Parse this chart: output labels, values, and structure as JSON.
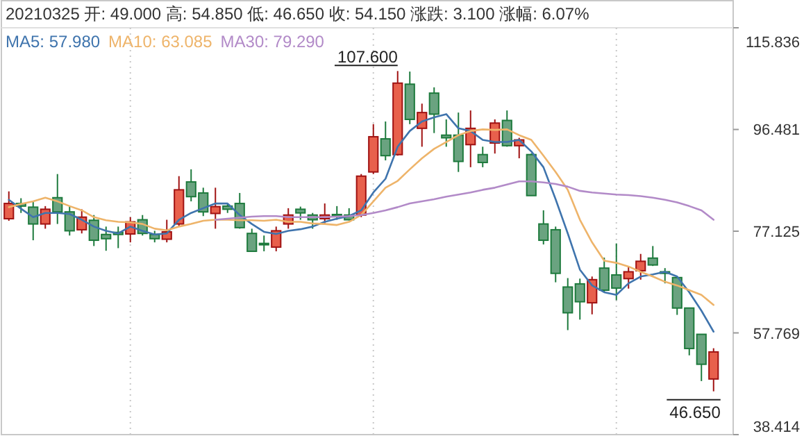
{
  "chart_data": {
    "type": "candlestick",
    "categories": [
      null,
      null,
      null,
      null,
      null,
      null,
      null,
      null,
      null,
      null,
      null,
      null,
      null,
      null,
      null,
      null,
      null,
      null,
      null,
      null,
      null,
      null,
      null,
      null,
      null,
      null,
      null,
      null,
      null,
      null,
      null,
      null,
      null,
      null,
      null,
      null,
      null,
      null,
      null,
      null,
      null,
      null,
      null,
      null,
      null,
      null,
      null,
      null,
      null,
      null,
      null,
      null,
      null,
      null,
      null,
      null,
      null,
      null,
      null
    ],
    "ohlc": [
      [
        79.5,
        84.7,
        79.1,
        82.4
      ],
      [
        82.4,
        83.4,
        80.6,
        81.9
      ],
      [
        81.7,
        82.8,
        75.4,
        78.5
      ],
      [
        78.5,
        81.9,
        77.6,
        81.3
      ],
      [
        83.5,
        88.0,
        78.5,
        80.8
      ],
      [
        80.8,
        81.9,
        76.3,
        77.2
      ],
      [
        77.4,
        81.3,
        76.7,
        79.8
      ],
      [
        79.2,
        80.2,
        74.3,
        75.4
      ],
      [
        76.5,
        78.0,
        73.4,
        75.7
      ],
      [
        76.9,
        78.0,
        73.9,
        76.5
      ],
      [
        76.6,
        79.8,
        75.0,
        78.9
      ],
      [
        79.3,
        80.2,
        76.3,
        76.7
      ],
      [
        76.5,
        77.2,
        75.0,
        75.7
      ],
      [
        75.6,
        79.3,
        75.0,
        77.0
      ],
      [
        78.5,
        87.6,
        78.0,
        85.0
      ],
      [
        86.5,
        88.9,
        82.8,
        83.7
      ],
      [
        84.4,
        85.4,
        80.0,
        80.8
      ],
      [
        80.5,
        85.4,
        77.6,
        81.8
      ],
      [
        81.9,
        82.4,
        80.6,
        81.3
      ],
      [
        82.4,
        84.4,
        77.6,
        77.8
      ],
      [
        76.7,
        77.6,
        73.3,
        73.3
      ],
      [
        74.8,
        76.3,
        73.3,
        74.6
      ],
      [
        74.1,
        78.0,
        73.3,
        77.2
      ],
      [
        78.5,
        81.5,
        77.6,
        80.2
      ],
      [
        81.3,
        81.8,
        79.3,
        80.6
      ],
      [
        80.2,
        80.6,
        77.6,
        79.3
      ],
      [
        79.5,
        82.4,
        78.5,
        80.2
      ],
      [
        80.3,
        81.9,
        79.3,
        80.0
      ],
      [
        80.2,
        81.5,
        79.2,
        79.3
      ],
      [
        80.2,
        88.0,
        79.8,
        87.6
      ],
      [
        88.4,
        97.5,
        88.0,
        95.1
      ],
      [
        94.7,
        98.0,
        90.6,
        91.5
      ],
      [
        91.7,
        107.6,
        91.5,
        105.3
      ],
      [
        105.1,
        107.5,
        97.5,
        98.4
      ],
      [
        96.7,
        101.4,
        93.2,
        99.7
      ],
      [
        103.4,
        104.5,
        95.8,
        99.4
      ],
      [
        95.4,
        98.4,
        93.2,
        94.9
      ],
      [
        95.4,
        99.7,
        88.4,
        90.4
      ],
      [
        93.6,
        100.1,
        89.3,
        96.7
      ],
      [
        91.7,
        93.2,
        89.3,
        90.2
      ],
      [
        93.9,
        98.4,
        91.9,
        97.7
      ],
      [
        98.2,
        100.1,
        93.2,
        93.4
      ],
      [
        93.4,
        94.9,
        91.0,
        94.5
      ],
      [
        91.7,
        91.9,
        83.9,
        83.9
      ],
      [
        78.5,
        81.1,
        74.6,
        75.4
      ],
      [
        77.4,
        78.0,
        67.4,
        69.1
      ],
      [
        66.5,
        68.2,
        58.3,
        61.6
      ],
      [
        67.1,
        68.1,
        60.3,
        63.7
      ],
      [
        63.5,
        68.5,
        61.3,
        67.9
      ],
      [
        70.1,
        72.1,
        65.5,
        65.9
      ],
      [
        68.8,
        74.8,
        64.0,
        66.3
      ],
      [
        68.1,
        70.4,
        66.2,
        69.4
      ],
      [
        69.6,
        72.8,
        67.9,
        71.4
      ],
      [
        72.0,
        74.3,
        70.5,
        70.7
      ],
      [
        69.4,
        70.1,
        67.2,
        69.1
      ],
      [
        68.3,
        68.3,
        61.2,
        62.5
      ],
      [
        62.5,
        62.5,
        53.5,
        54.8
      ],
      [
        57.5,
        57.5,
        48.6,
        51.8
      ],
      [
        49.0,
        54.85,
        46.65,
        54.15
      ]
    ],
    "series": [
      {
        "name": "MA5: 57.980",
        "type": "line",
        "color": "#3f74ad",
        "values": [
          83.1,
          81.4,
          79.8,
          80.6,
          80.6,
          80.4,
          79.3,
          78.0,
          77.2,
          76.7,
          78.0,
          77.2,
          76.5,
          76.7,
          79.3,
          80.6,
          81.5,
          82.4,
          82.4,
          80.2,
          78.5,
          77.0,
          76.6,
          77.2,
          77.5,
          78.0,
          78.9,
          79.5,
          80.0,
          81.1,
          84.5,
          87.1,
          93.2,
          96.2,
          98.0,
          98.8,
          99.4,
          96.7,
          96.2,
          94.5,
          94.1,
          94.1,
          94.5,
          92.3,
          89.3,
          83.2,
          76.7,
          69.8,
          66.8,
          65.5,
          65.0,
          67.2,
          68.5,
          68.9,
          69.4,
          68.5,
          65.5,
          62.0,
          58.0
        ]
      },
      {
        "name": "MA10: 63.085",
        "type": "line",
        "color": "#eeb46a",
        "values": [
          81.7,
          82.3,
          82.8,
          83.5,
          82.8,
          81.9,
          81.1,
          79.8,
          79.2,
          78.9,
          78.8,
          78.5,
          77.6,
          77.3,
          78.0,
          78.5,
          79.1,
          79.3,
          79.3,
          79.2,
          79.2,
          79.1,
          79.3,
          78.9,
          78.9,
          78.6,
          78.5,
          78.3,
          78.9,
          80.2,
          82.8,
          85.4,
          86.7,
          88.9,
          91.0,
          92.8,
          94.1,
          95.4,
          96.2,
          96.5,
          96.4,
          96.5,
          95.4,
          94.5,
          91.5,
          88.4,
          85.0,
          79.3,
          75.0,
          71.5,
          71.1,
          70.4,
          69.4,
          68.5,
          67.5,
          66.8,
          65.9,
          65.0,
          63.1
        ]
      },
      {
        "name": "MA30: 79.290",
        "type": "line",
        "color": "#b28ac8",
        "values": [
          null,
          null,
          null,
          null,
          null,
          null,
          null,
          null,
          null,
          null,
          null,
          null,
          null,
          null,
          null,
          null,
          null,
          79.3,
          79.5,
          79.7,
          79.9,
          80.0,
          80.0,
          79.8,
          79.8,
          79.8,
          79.8,
          79.9,
          80.0,
          80.2,
          80.6,
          81.1,
          81.7,
          82.4,
          82.8,
          83.2,
          83.7,
          84.1,
          84.5,
          85.0,
          85.4,
          86.0,
          86.6,
          86.6,
          86.4,
          86.1,
          85.6,
          84.8,
          84.5,
          84.3,
          84.1,
          84.0,
          83.8,
          83.5,
          83.1,
          82.6,
          81.9,
          81.1,
          79.3
        ]
      }
    ],
    "ylim": [
      38.414,
      115.836
    ],
    "yticks": [
      115.836,
      96.481,
      77.125,
      57.769,
      38.414
    ],
    "grid": "x",
    "legend": "top left",
    "annotations": [
      "20210325 开: 49.000 高: 54.850 低: 46.650 收: 54.150 涨跌: 3.100 涨幅: 6.07%",
      "107.600",
      "46.650"
    ]
  }
}
